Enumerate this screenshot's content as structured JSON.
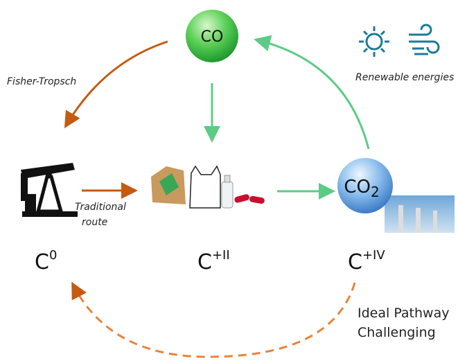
{
  "nodes": {
    "co": {
      "label": "CO"
    },
    "co2": {
      "base": "CO",
      "sub": "2"
    }
  },
  "annotations": {
    "fisher_tropsch": "Fisher-Tropsch",
    "renewable": "Renewable energies",
    "traditional_route": [
      "Traditional",
      "route"
    ],
    "ideal_pathway": [
      "Ideal Pathway",
      "Challenging"
    ]
  },
  "oxidation_states": [
    {
      "base": "C",
      "sup": "0"
    },
    {
      "base": "C",
      "sup": "+II"
    },
    {
      "base": "C",
      "sup": "+IV"
    }
  ]
}
